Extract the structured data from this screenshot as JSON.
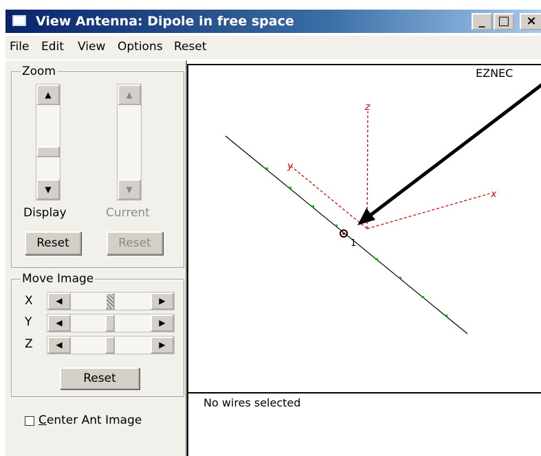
{
  "header": {
    "title": "View Antenna: Dipole in free space",
    "minimize": "_",
    "maximize": "□",
    "close": "×"
  },
  "menu": [
    "File",
    "Edit",
    "View",
    "Options",
    "Reset"
  ],
  "zoom": {
    "title": "Zoom",
    "display_label": "Display",
    "current_label": "Current",
    "display_reset": "Reset",
    "current_reset": "Reset"
  },
  "move_image": {
    "title": "Move Image",
    "axes": [
      "X",
      "Y",
      "Z"
    ],
    "reset": "Reset"
  },
  "center_checkbox": "Center Ant Image",
  "view": {
    "brand": "EZNEC",
    "axis_labels": {
      "x": "x",
      "y": "y",
      "z": "z"
    },
    "wire_label": "1"
  },
  "status": "No wires selected"
}
